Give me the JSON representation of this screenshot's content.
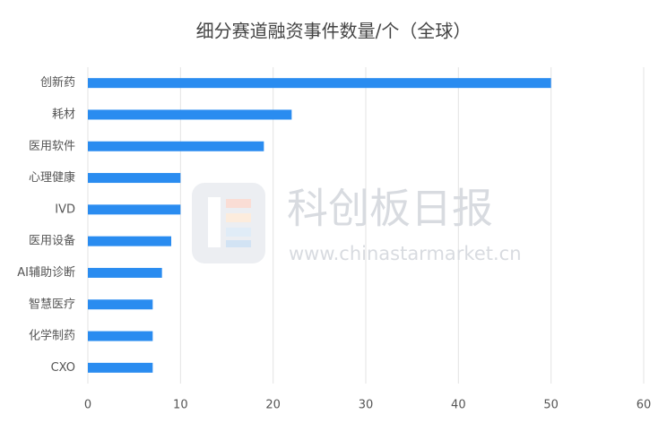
{
  "chart_data": {
    "type": "hbar",
    "title": "细分赛道融资事件数量/个（全球）",
    "categories": [
      "创新药",
      "耗材",
      "医用软件",
      "心理健康",
      "IVD",
      "医用设备",
      "AI辅助诊断",
      "智慧医疗",
      "化学制药",
      "CXO"
    ],
    "values": [
      50,
      22,
      19,
      10,
      10,
      9,
      8,
      7,
      7,
      7
    ],
    "color": "#2a8cf0",
    "xlim": [
      0,
      60
    ],
    "xticks": [
      0,
      10,
      20,
      30,
      40,
      50,
      60
    ],
    "grid": true
  },
  "watermark": {
    "title": "科创板日报",
    "url": "www.chinastarmarket.cn"
  }
}
